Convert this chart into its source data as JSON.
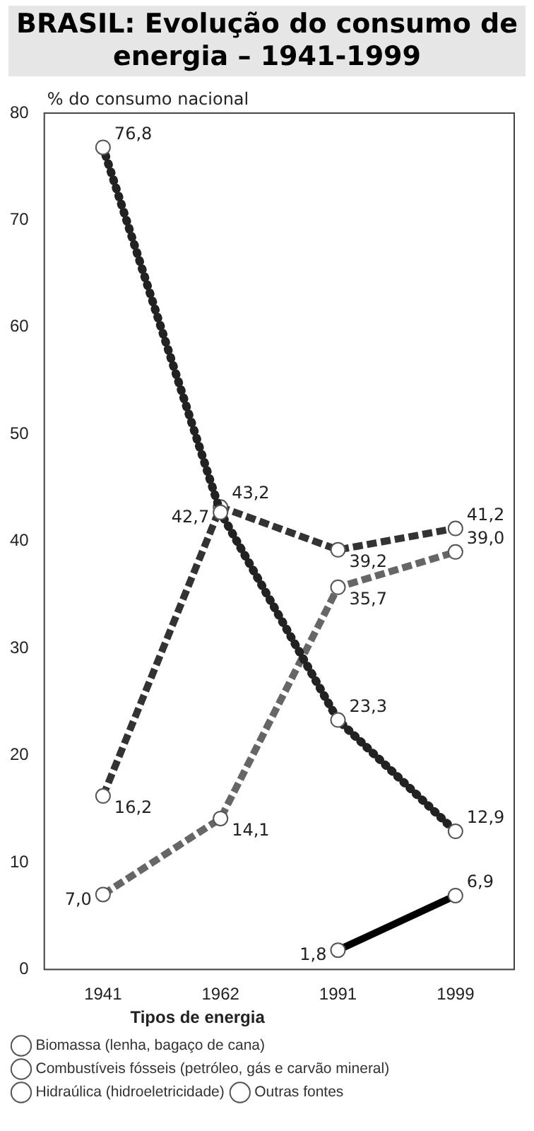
{
  "chart_data": {
    "type": "line",
    "title": "BRASIL: Evolução do consumo de energia – 1941-1999",
    "ylabel": "% do consumo nacional",
    "legend_title": "Tipos de energia",
    "categories": [
      "1941",
      "1962",
      "1991",
      "1999"
    ],
    "ylim": [
      0,
      80
    ],
    "yticks": [
      0,
      10,
      20,
      30,
      40,
      50,
      60,
      70,
      80
    ],
    "grid": false,
    "legend": "bottom",
    "marker": "circle",
    "series": [
      {
        "name": "Biomassa (lenha, bagaço de cana)",
        "color": "#222222",
        "line_style": "dotted",
        "values": [
          76.8,
          42.7,
          23.3,
          12.9
        ],
        "value_labels": [
          "76,8",
          "42,7",
          "23,3",
          "12,9"
        ]
      },
      {
        "name": "Combustíveis fósseis (petróleo, gás e carvão mineral)",
        "color": "#333333",
        "line_style": "dashed",
        "values": [
          16.2,
          43.2,
          39.2,
          41.2
        ],
        "value_labels": [
          "16,2",
          "43,2",
          "39,2",
          "41,2"
        ]
      },
      {
        "name": "Hidraúlica (hidroeletricidade)",
        "color": "#666666",
        "line_style": "dashed",
        "values": [
          7.0,
          14.1,
          35.7,
          39.0
        ],
        "value_labels": [
          "7,0",
          "14,1",
          "35,7",
          "39,0"
        ]
      },
      {
        "name": "Outras fontes",
        "color": "#000000",
        "line_style": "solid",
        "values": [
          null,
          null,
          1.8,
          6.9
        ],
        "value_labels": [
          null,
          null,
          "1,8",
          "6,9"
        ]
      }
    ]
  }
}
